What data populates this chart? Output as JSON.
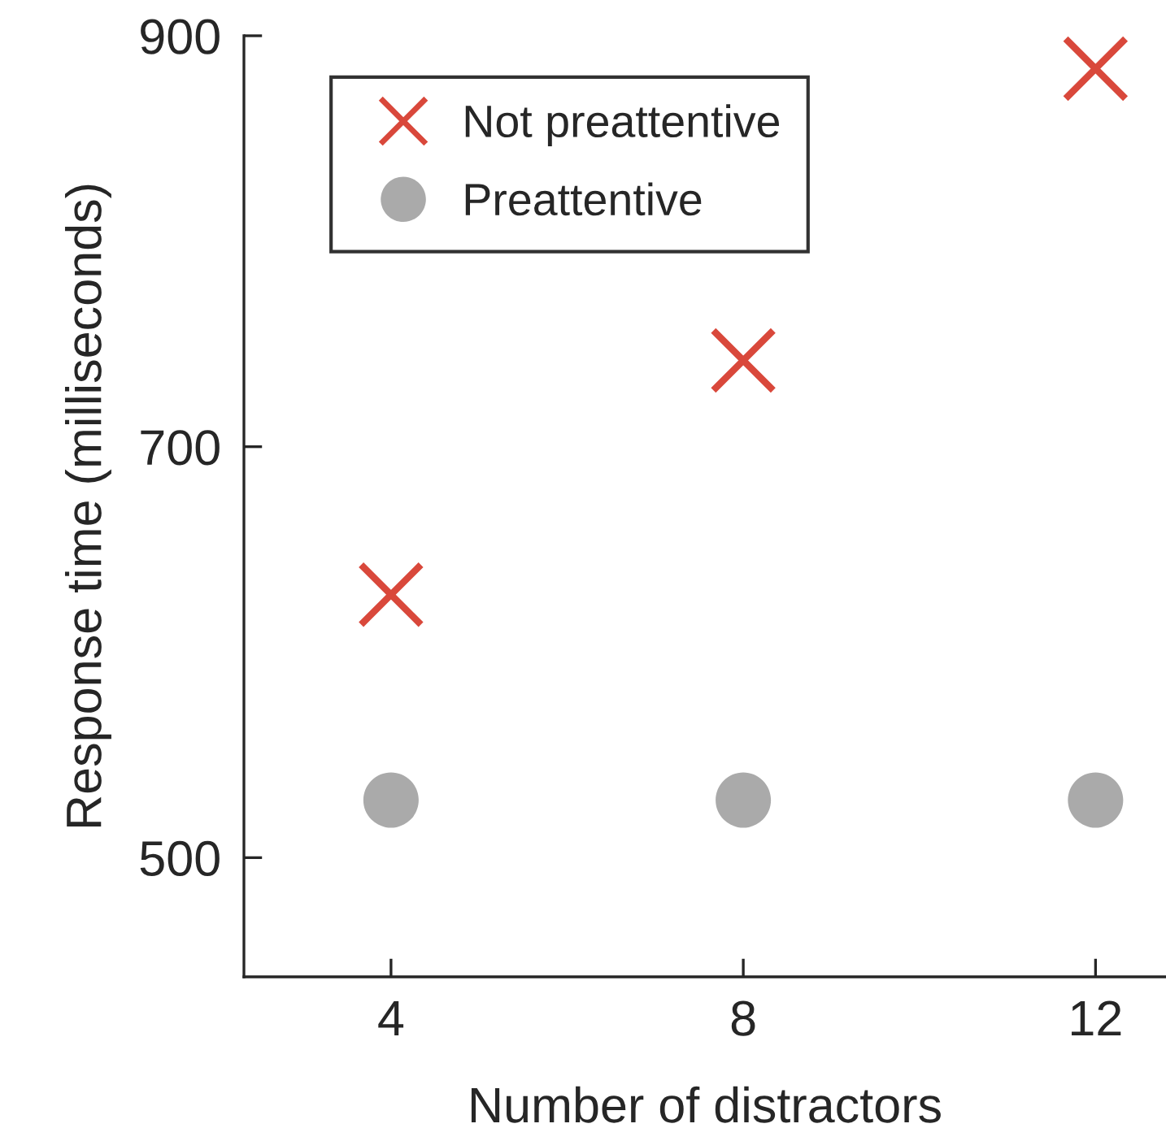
{
  "chart_data": {
    "type": "scatter",
    "xlabel": "Number of distractors",
    "ylabel": "Response time (milliseconds)",
    "xlim": [
      2.33,
      12.8
    ],
    "xticks": [
      4,
      8,
      12
    ],
    "ylim": [
      442,
      900
    ],
    "yticks": [
      500,
      700,
      900
    ],
    "grid": false,
    "legend": "top left",
    "series": [
      {
        "name": "Not preattentive",
        "color": "#d9483b",
        "marker": "cross",
        "x": [
          4,
          8,
          12
        ],
        "values": [
          628,
          742,
          884
        ]
      },
      {
        "name": "Preattentive",
        "color": "#aaaaaa",
        "marker": "circle",
        "x": [
          4,
          8,
          12
        ],
        "values": [
          528,
          528,
          528
        ]
      }
    ]
  }
}
